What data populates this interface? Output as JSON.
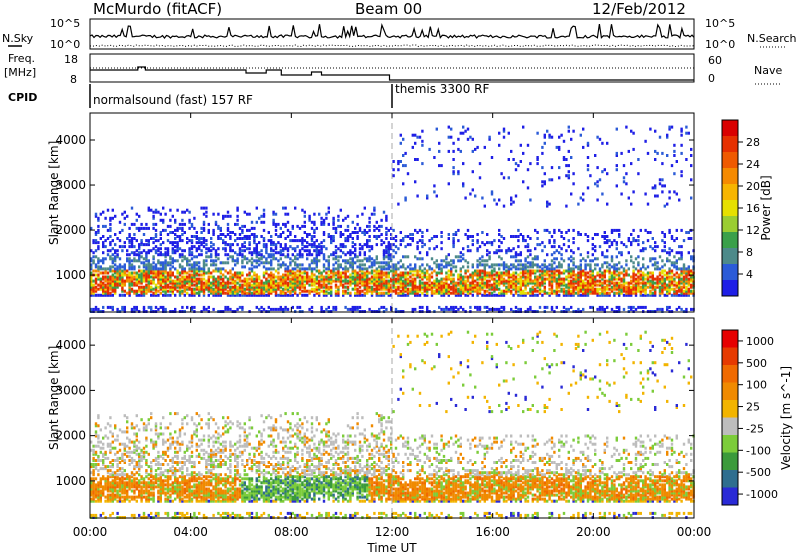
{
  "header": {
    "station": "McMurdo (fitACF)",
    "beam": "Beam 00",
    "date": "12/Feb/2012"
  },
  "sky_panel": {
    "left_label": "N.Sky",
    "right_label": "N.Search",
    "left_ticks": [
      "10^5",
      "10^0"
    ],
    "right_ticks": [
      "10^5",
      "10^0"
    ]
  },
  "freq_panel": {
    "left_label_1": "Freq.",
    "left_label_2": "[MHz]",
    "left_ticks": [
      "18",
      "8"
    ],
    "right_label": "Nave",
    "right_ticks": [
      "60",
      "0"
    ]
  },
  "cpid": {
    "label": "CPID",
    "modes": [
      {
        "name": "normalsound (fast) 157 RF",
        "start_hour": 0
      },
      {
        "name": "themis 3300 RF",
        "start_hour": 12
      }
    ]
  },
  "chart_data": [
    {
      "type": "heatmap",
      "ylabel": "Slant Range [km]",
      "yticks": [
        "1000",
        "2000",
        "3000",
        "4000"
      ],
      "ylim": [
        180,
        4600
      ],
      "xlim_hours": [
        0,
        24
      ],
      "colorbar": {
        "label": "Power [dB]",
        "ticks": [
          "4",
          "8",
          "12",
          "16",
          "20",
          "24",
          "28"
        ],
        "colors": [
          "#1f1fe6",
          "#2b5bd7",
          "#4d8a8a",
          "#3aa04a",
          "#9acd32",
          "#e6e000",
          "#f7b500",
          "#f58a00",
          "#ef5a00",
          "#e63000",
          "#d90000"
        ]
      },
      "main_echo_band_km": [
        500,
        1200
      ],
      "secondary_scatter_km": [
        1200,
        2600
      ],
      "sparse_scatter_after_12ut_km": [
        2500,
        4300
      ]
    },
    {
      "type": "heatmap",
      "ylabel": "Slant Range [km]",
      "yticks": [
        "1000",
        "2000",
        "3000",
        "4000"
      ],
      "ylim": [
        180,
        4600
      ],
      "xlim_hours": [
        0,
        24
      ],
      "colorbar": {
        "label": "Velocity [m s^-1]",
        "ticks": [
          "1000",
          "500",
          "100",
          "25",
          "-25",
          "-100",
          "-500",
          "-1000"
        ],
        "colors": [
          "#2a2ad6",
          "#2f6e8f",
          "#3b9a3b",
          "#7ccc3a",
          "#bdbdbd",
          "#f2b400",
          "#f08a00",
          "#f06a00",
          "#e63a00",
          "#e60000"
        ]
      }
    }
  ],
  "x_axis": {
    "ticks": [
      "00:00",
      "04:00",
      "08:00",
      "12:00",
      "16:00",
      "20:00",
      "00:00"
    ],
    "label": "Time UT"
  }
}
